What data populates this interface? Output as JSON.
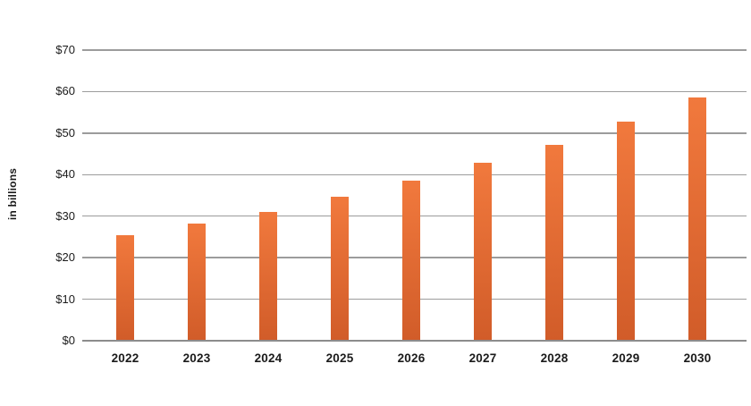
{
  "chart_data": {
    "type": "bar",
    "title": "",
    "categories": [
      "2022",
      "2023",
      "2024",
      "2025",
      "2026",
      "2027",
      "2028",
      "2029",
      "2030"
    ],
    "values": [
      25.5,
      28.2,
      31.0,
      34.6,
      38.6,
      42.8,
      47.1,
      52.7,
      58.5
    ],
    "xlabel": "",
    "ylabel": "in billions",
    "ylim": [
      0,
      70
    ],
    "ytick_interval": 10,
    "ytick_labels": [
      "$0",
      "$10",
      "$20",
      "$30",
      "$40",
      "$50",
      "$60",
      "$70"
    ],
    "grid": true,
    "legend_position": "none",
    "colors": {
      "bar_top": "#f1793d",
      "bar_bottom": "#d15c29",
      "gridline": "#9c9c9c",
      "axis_line": "#8c8c8c",
      "label_text": "#1b1b1b"
    }
  }
}
